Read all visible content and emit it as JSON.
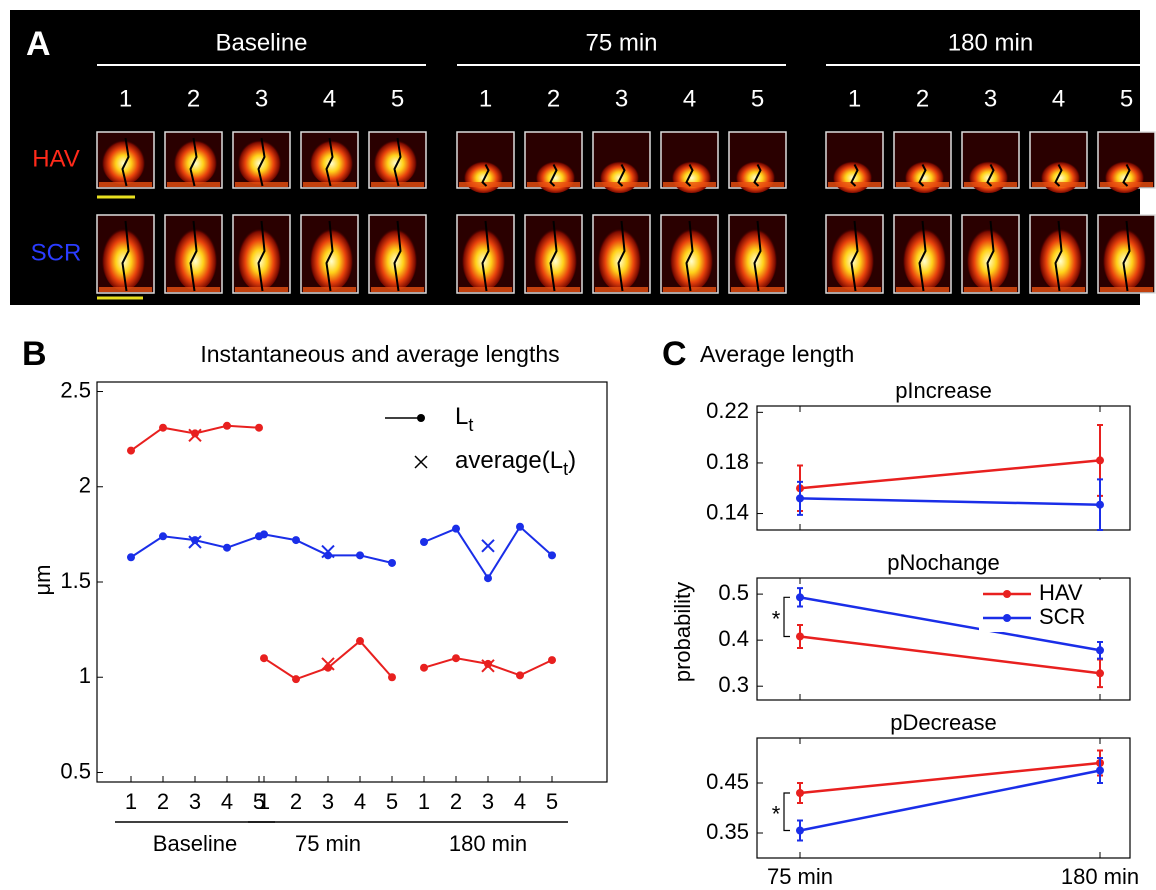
{
  "panel_a": {
    "panel_label": "A",
    "groups": [
      "Baseline",
      "75 min",
      "180 min"
    ],
    "frames": [
      "1",
      "2",
      "3",
      "4",
      "5"
    ],
    "rows": [
      "HAV",
      "SCR"
    ]
  },
  "chart_data": [
    {
      "type": "line",
      "panel_label": "B",
      "title": "Instantaneous and average lengths",
      "ylabel": "μm",
      "groups": [
        "Baseline",
        "75 min",
        "180 min"
      ],
      "categories": [
        "1",
        "2",
        "3",
        "4",
        "5",
        "1",
        "2",
        "3",
        "4",
        "5",
        "1",
        "2",
        "3",
        "4",
        "5"
      ],
      "ylim": [
        0.45,
        2.55
      ],
      "yticks": [
        0.5,
        1,
        1.5,
        2,
        2.5
      ],
      "series": [
        {
          "color": "#e8201f",
          "values": [
            2.19,
            2.31,
            2.28,
            2.32,
            2.31,
            1.1,
            0.99,
            1.05,
            1.19,
            1.0,
            1.05,
            1.1,
            1.07,
            1.01,
            1.09
          ],
          "averages": [
            2.27,
            1.07,
            1.06
          ]
        },
        {
          "color": "#1a2ee8",
          "values": [
            1.63,
            1.74,
            1.72,
            1.68,
            1.74,
            1.75,
            1.72,
            1.64,
            1.64,
            1.6,
            1.71,
            1.78,
            1.52,
            1.79,
            1.64
          ],
          "averages": [
            1.71,
            1.66,
            1.69
          ]
        }
      ],
      "legend": {
        "position": "upper right",
        "entries": [
          {
            "text": "L",
            "subscript": "t"
          },
          {
            "text": "average(L",
            "subscript": "t",
            "suffix": ")"
          }
        ]
      }
    },
    {
      "type": "errorbar",
      "panel_label": "C",
      "title": "Average length",
      "ylabel": "probability",
      "categories": [
        "75 min",
        "180 min"
      ],
      "series": [
        {
          "name": "HAV",
          "color": "#e8201f"
        },
        {
          "name": "SCR",
          "color": "#1a2ee8"
        }
      ],
      "subplots": [
        {
          "title": "pIncrease",
          "ylim": [
            0.127,
            0.225
          ],
          "yticks": [
            0.14,
            0.18,
            0.22
          ],
          "values": [
            [
              0.16,
              0.182
            ],
            [
              0.152,
              0.147
            ]
          ],
          "errors": [
            [
              0.018,
              0.028
            ],
            [
              0.013,
              0.02
            ]
          ]
        },
        {
          "title": "pNochange",
          "ylim": [
            0.27,
            0.535
          ],
          "yticks": [
            0.3,
            0.4,
            0.5
          ],
          "values": [
            [
              0.408,
              0.328
            ],
            [
              0.493,
              0.378
            ]
          ],
          "errors": [
            [
              0.025,
              0.03
            ],
            [
              0.02,
              0.018
            ]
          ],
          "significance": "*",
          "legend": "upper right"
        },
        {
          "title": "pDecrease",
          "ylim": [
            0.3,
            0.54
          ],
          "yticks": [
            0.35,
            0.45
          ],
          "values": [
            [
              0.43,
              0.49
            ],
            [
              0.355,
              0.475
            ]
          ],
          "errors": [
            [
              0.02,
              0.025
            ],
            [
              0.02,
              0.025
            ]
          ],
          "significance": "*"
        }
      ]
    }
  ]
}
